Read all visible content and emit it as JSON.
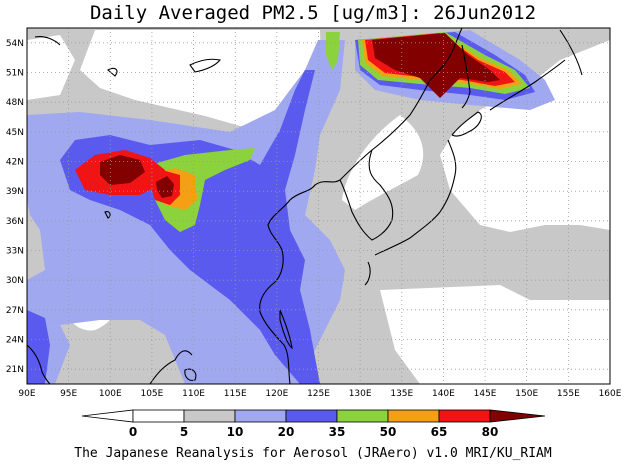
{
  "title": "Daily Averaged PM2.5 [ug/m3]: 26Jun2012",
  "credit": "The Japanese Reanalysis for Aerosol (JRAero) v1.0 MRI/KU_RIAM",
  "map": {
    "lon_range": [
      90,
      160
    ],
    "lat_range": [
      19.5,
      55.5
    ],
    "lon_ticks": [
      "90E",
      "95E",
      "100E",
      "105E",
      "110E",
      "115E",
      "120E",
      "125E",
      "130E",
      "135E",
      "140E",
      "145E",
      "150E",
      "155E",
      "160E"
    ],
    "lat_ticks": [
      "21N",
      "24N",
      "27N",
      "30N",
      "33N",
      "36N",
      "39N",
      "42N",
      "45N",
      "48N",
      "51N",
      "54N"
    ],
    "grid": "dotted",
    "colors": {
      "white": "#ffffff",
      "gray": "#c8c8c8",
      "lightblue": "#a0a8f0",
      "blue": "#5a5aee",
      "green": "#8cd23c",
      "orange": "#f5a014",
      "red": "#f01414",
      "darkred": "#820000",
      "coast": "#000000"
    }
  },
  "colorbar": {
    "levels": [
      "0",
      "5",
      "10",
      "20",
      "35",
      "50",
      "65",
      "80"
    ],
    "colors": [
      "#ffffff",
      "#ffffff",
      "#c8c8c8",
      "#a0a8f0",
      "#5a5aee",
      "#8cd23c",
      "#f5a014",
      "#f01414",
      "#820000"
    ]
  }
}
